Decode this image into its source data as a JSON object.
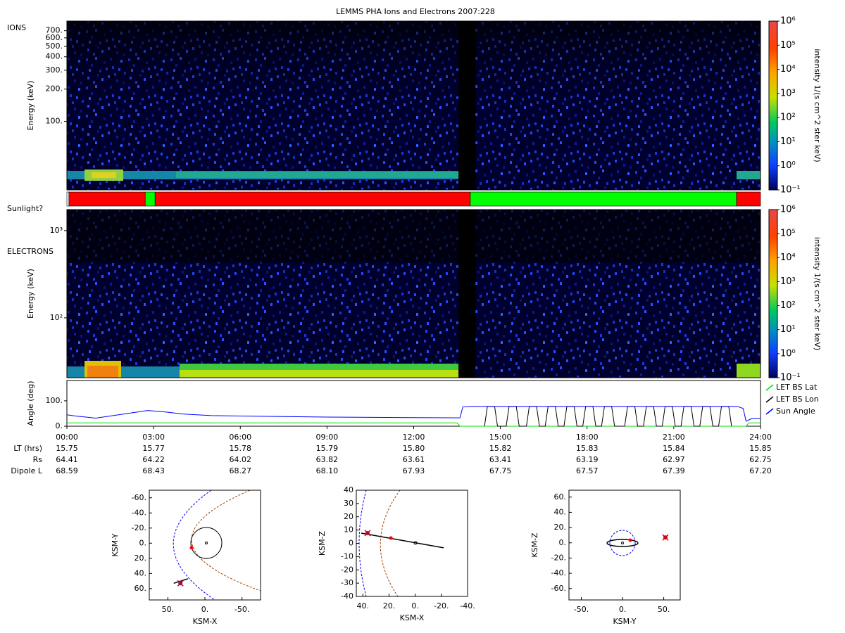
{
  "chart_data": [
    {
      "type": "spectrogram",
      "title": "LEMMS PHA Ions and Electrons  2007:228",
      "label": "IONS",
      "ylabel": "Energy (keV)",
      "log": true,
      "xlim": [
        0,
        24
      ],
      "ylim": [
        23,
        860
      ],
      "yticks": [
        {
          "value": 700,
          "label": "700."
        },
        {
          "value": 600,
          "label": "600."
        },
        {
          "value": 500,
          "label": "500."
        },
        {
          "value": 400,
          "label": "400."
        },
        {
          "value": 300,
          "label": "300."
        },
        {
          "value": 200,
          "label": "200."
        },
        {
          "value": 100,
          "label": "100."
        }
      ],
      "data_gap": [
        13.55,
        14.14
      ],
      "colorbar": {
        "label": "intensity 1/(s cm^2 ster keV)",
        "log": true,
        "zlim": [
          0.1,
          1000000
        ],
        "ticks": [
          {
            "value": 1000000,
            "label": "10⁶"
          },
          {
            "value": 100000,
            "label": "10⁵"
          },
          {
            "value": 10000,
            "label": "10⁴"
          },
          {
            "value": 1000,
            "label": "10³"
          },
          {
            "value": 100,
            "label": "10²"
          },
          {
            "value": 10,
            "label": "10¹"
          },
          {
            "value": 1,
            "label": "10⁰"
          },
          {
            "value": 0.1,
            "label": "10⁻¹"
          }
        ]
      }
    },
    {
      "type": "timeline",
      "label": "Sunlight?",
      "xlim": [
        0,
        24
      ],
      "start": [
        0,
        0.07,
        2.71,
        3.05,
        13.96,
        23.17
      ],
      "end": [
        0.07,
        2.71,
        3.05,
        13.96,
        23.17,
        24
      ],
      "colors": [
        "#ffffff",
        "#ff0000",
        "#00ff00",
        "#ff0000",
        "#00ff00",
        "#ff0000"
      ]
    },
    {
      "type": "spectrogram",
      "label": "ELECTRONS",
      "ylabel": "Energy (keV)",
      "log": true,
      "xlim": [
        0,
        24
      ],
      "ylim": [
        20.6,
        1740
      ],
      "yticks": [
        {
          "value": 1000,
          "label": "10³"
        },
        {
          "value": 100,
          "label": "10²"
        }
      ],
      "data_gap": [
        13.55,
        14.14
      ],
      "colorbar": {
        "label": "intensity 1/(s cm^2 ster keV)",
        "log": true,
        "zlim": [
          0.1,
          1000000
        ],
        "ticks": [
          {
            "value": 1000000,
            "label": "10⁶"
          },
          {
            "value": 100000,
            "label": "10⁵"
          },
          {
            "value": 10000,
            "label": "10⁴"
          },
          {
            "value": 1000,
            "label": "10³"
          },
          {
            "value": 100,
            "label": "10²"
          },
          {
            "value": 10,
            "label": "10¹"
          },
          {
            "value": 1,
            "label": "10⁰"
          },
          {
            "value": 0.1,
            "label": "10⁻¹"
          }
        ]
      }
    },
    {
      "type": "line",
      "ylabel": "Angle (deg)",
      "xlim": [
        0,
        24
      ],
      "ylim": [
        0,
        180
      ],
      "yticks": [
        {
          "value": 0,
          "label": "0."
        },
        {
          "value": 100,
          "label": "100."
        }
      ],
      "xticks": [
        {
          "value": 0,
          "label": "00:00"
        },
        {
          "value": 3,
          "label": "03:00"
        },
        {
          "value": 6,
          "label": "06:00"
        },
        {
          "value": 9,
          "label": "09:00"
        },
        {
          "value": 12,
          "label": "12:00"
        },
        {
          "value": 15,
          "label": "15:00"
        },
        {
          "value": 18,
          "label": "18:00"
        },
        {
          "value": 21,
          "label": "21:00"
        },
        {
          "value": 24,
          "label": "24:00"
        }
      ],
      "legend": "outside-right",
      "series": [
        {
          "name": "LET BS Lat",
          "color": "#00dd00",
          "x": [
            0,
            13.5,
            13.6,
            23.5,
            23.6,
            24
          ],
          "values": [
            13,
            13,
            0,
            0,
            13,
            13
          ]
        },
        {
          "name": "LET BS Lon",
          "color": "#000000",
          "x": [
            14.45,
            14.55,
            14.8,
            14.9,
            15.2,
            15.3,
            15.55,
            15.65,
            15.9,
            16.0,
            16.25,
            16.35,
            16.55,
            16.65,
            16.9,
            17.0,
            17.2,
            17.3,
            17.55,
            17.65,
            17.85,
            17.95,
            18.2,
            18.3,
            18.5,
            18.6,
            18.85,
            18.95,
            19.3,
            19.4,
            19.65,
            19.75,
            19.95,
            20.05,
            20.3,
            20.4,
            20.6,
            20.7,
            20.95,
            21.05,
            21.25,
            21.35,
            21.6,
            21.7,
            21.9,
            22.0,
            22.25,
            22.35,
            22.55,
            22.65,
            22.9,
            23.0
          ],
          "values": [
            0,
            78,
            78,
            0,
            0,
            78,
            78,
            0,
            0,
            78,
            78,
            0,
            0,
            78,
            78,
            0,
            0,
            78,
            78,
            0,
            0,
            78,
            78,
            0,
            0,
            78,
            78,
            0,
            0,
            78,
            78,
            0,
            0,
            78,
            78,
            0,
            0,
            78,
            78,
            0,
            0,
            78,
            78,
            0,
            0,
            78,
            78,
            0,
            0,
            78,
            78,
            0
          ]
        },
        {
          "name": "Sun Angle",
          "color": "#0000ff",
          "x": [
            0,
            0.3,
            1,
            2.8,
            3.5,
            4,
            5,
            6,
            9,
            12,
            13.6,
            13.7,
            14,
            23.2,
            23.4,
            23.5,
            23.7,
            24
          ],
          "values": [
            45,
            40,
            32,
            62,
            55,
            48,
            42,
            40,
            36,
            34,
            33,
            76,
            78,
            78,
            70,
            20,
            30,
            30
          ]
        }
      ],
      "ephemeris": [
        {
          "name": "LT (hrs)",
          "values": [
            "15.75",
            "15.77",
            "15.78",
            "15.79",
            "15.80",
            "15.82",
            "15.83",
            "15.84",
            "15.85"
          ]
        },
        {
          "name": "Rs",
          "values": [
            "64.41",
            "64.22",
            "64.02",
            "63.82",
            "63.61",
            "63.41",
            "63.19",
            "62.97",
            "62.75"
          ]
        },
        {
          "name": "Dipole L",
          "values": [
            "68.59",
            "68.43",
            "68.27",
            "68.10",
            "67.93",
            "67.75",
            "67.57",
            "67.39",
            "67.20"
          ]
        }
      ]
    },
    {
      "type": "orbit",
      "xlabel": "KSM-X",
      "ylabel": "KSM-Y",
      "xlim": [
        75,
        -75
      ],
      "ylim": [
        75,
        -70
      ],
      "xticks": [
        {
          "value": 50,
          "label": "50."
        },
        {
          "value": 0,
          "label": "0."
        },
        {
          "value": -50,
          "label": "-50."
        }
      ],
      "yticks": [
        {
          "value": -60,
          "label": "-60."
        },
        {
          "value": -40,
          "label": "-40."
        },
        {
          "value": -20,
          "label": "-20."
        },
        {
          "value": 0,
          "label": "0."
        },
        {
          "value": 20,
          "label": "20."
        },
        {
          "value": 40,
          "label": "40."
        },
        {
          "value": 60,
          "label": "60."
        }
      ],
      "trajectory": {
        "x": [
          42,
          23
        ],
        "y": [
          53,
          47
        ]
      },
      "spacecraft": {
        "x": 33,
        "y": 53
      },
      "marker": {
        "x": 18,
        "y": 6
      }
    },
    {
      "type": "orbit",
      "xlabel": "KSM-X",
      "ylabel": "KSM-Z",
      "xlim": [
        45,
        -40
      ],
      "ylim": [
        -40,
        40
      ],
      "xticks": [
        {
          "value": 40,
          "label": "40."
        },
        {
          "value": 20,
          "label": "20."
        },
        {
          "value": 0,
          "label": "0."
        },
        {
          "value": -20,
          "label": "-20."
        },
        {
          "value": -40,
          "label": "-40."
        }
      ],
      "yticks": [
        40,
        30,
        20,
        10,
        0,
        -10,
        -20,
        -30,
        -40
      ],
      "trajectory": {
        "x": [
          41.2,
          -21.7
        ],
        "y": [
          7.7,
          -3.4
        ]
      },
      "spacecraft": {
        "x": 36.4,
        "y": 7.7
      },
      "marker": {
        "x": 18.6,
        "y": 4
      }
    },
    {
      "type": "orbit",
      "xlabel": "KSM-Y",
      "ylabel": "KSM-Z",
      "xlim": [
        -65,
        70
      ],
      "ylim": [
        -75,
        69
      ],
      "xticks": [
        {
          "value": -50,
          "label": "-50."
        },
        {
          "value": 0,
          "label": "0."
        },
        {
          "value": 50,
          "label": "50."
        }
      ],
      "yticks": [
        {
          "value": 60,
          "label": "60."
        },
        {
          "value": 40,
          "label": "40."
        },
        {
          "value": 20,
          "label": "20."
        },
        {
          "value": 0,
          "label": "0."
        },
        {
          "value": -20,
          "label": "-20."
        },
        {
          "value": -40,
          "label": "-40."
        },
        {
          "value": -60,
          "label": "-60."
        }
      ],
      "spacecraft": {
        "x": 52,
        "y": 7
      },
      "marker": {
        "x": 9.4,
        "y": 3.5
      }
    }
  ]
}
